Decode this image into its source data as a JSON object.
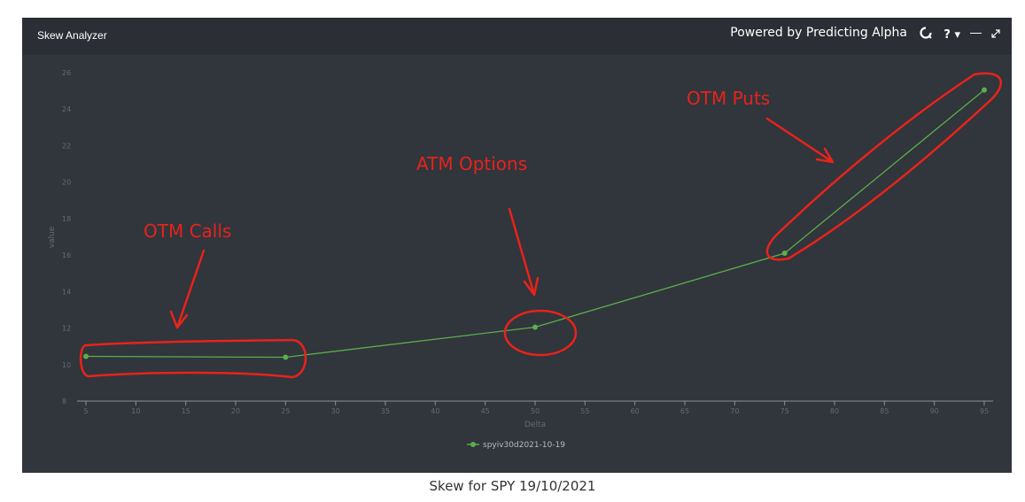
{
  "panel": {
    "title": "Skew Analyzer",
    "brand": "Powered by Predicting Alpha",
    "help_label": "?",
    "icons": [
      "brand-logo-icon",
      "help-icon",
      "minimize-icon",
      "expand-icon"
    ]
  },
  "colors": {
    "panel_bg": "#31353c",
    "topbar_bg": "#2b2e34",
    "series": "#5cae4c",
    "annotation": "#e8231b",
    "axis_text": "#666b73"
  },
  "chart_data": {
    "type": "line",
    "xlabel": "Delta",
    "ylabel": "value",
    "xlim": [
      4,
      96
    ],
    "ylim": [
      8,
      26
    ],
    "xticks": [
      5,
      10,
      15,
      20,
      25,
      30,
      35,
      40,
      45,
      50,
      55,
      60,
      65,
      70,
      75,
      80,
      85,
      90,
      95
    ],
    "yticks": [
      8,
      10,
      12,
      14,
      16,
      18,
      20,
      22,
      24,
      26
    ],
    "grid": false,
    "legend_position": "bottom-center",
    "series": [
      {
        "name": "spyiv30d2021-10-19",
        "x": [
          5,
          25,
          50,
          75,
          95
        ],
        "y": [
          10.45,
          10.4,
          12.05,
          16.1,
          25.05
        ]
      }
    ],
    "annotations": [
      "OTM Calls",
      "ATM Options",
      "OTM Puts"
    ]
  },
  "caption": "Skew for SPY 19/10/2021"
}
